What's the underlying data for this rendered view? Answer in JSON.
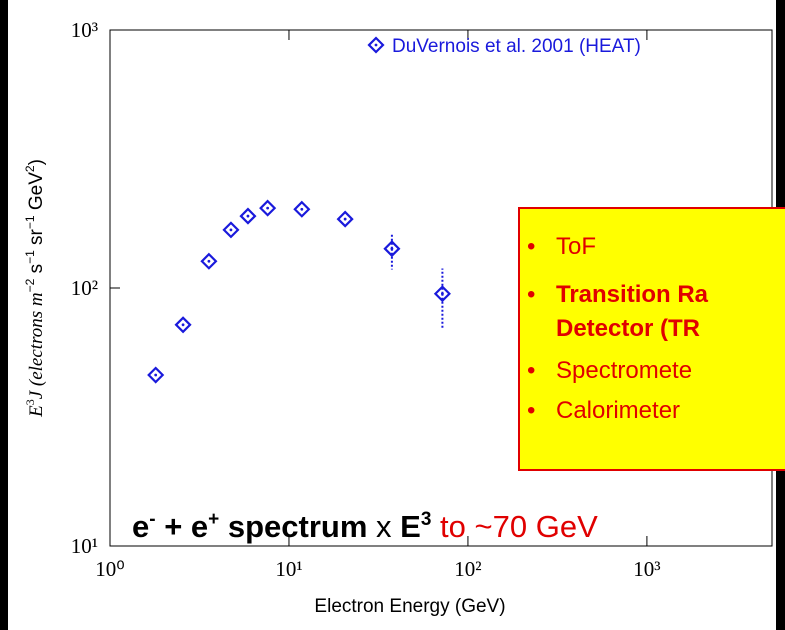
{
  "chart_data": {
    "type": "scatter",
    "xlabel": "Electron Energy (GeV)",
    "ylabel_parts": [
      "E",
      "3",
      "J (electrons m",
      "−2",
      " s",
      "−1",
      " sr",
      "−1",
      " GeV",
      "2",
      ")"
    ],
    "log_x": true,
    "log_y": true,
    "xlim": [
      1,
      5000
    ],
    "ylim": [
      10,
      1000
    ],
    "xticks": [
      {
        "value": 1,
        "label": "10⁰"
      },
      {
        "value": 10,
        "label": "10¹"
      },
      {
        "value": 100,
        "label": "10²"
      },
      {
        "value": 1000,
        "label": "10³"
      }
    ],
    "yticks": [
      {
        "value": 10,
        "label": "10¹"
      },
      {
        "value": 100,
        "label": "10²"
      },
      {
        "value": 1000,
        "label": "10³"
      }
    ],
    "series": [
      {
        "name": "DuVernois et al. 2001 (HEAT)",
        "color": "#1a1adc",
        "x": [
          1.8,
          2.56,
          3.57,
          4.74,
          5.9,
          7.6,
          11.8,
          20.6,
          37.6,
          72
        ],
        "values": [
          46,
          72,
          127,
          168,
          190,
          204,
          202,
          185,
          142,
          95
        ],
        "errors_plus": [
          null,
          null,
          null,
          null,
          null,
          null,
          null,
          null,
          20,
          24
        ],
        "errors_minus": [
          null,
          null,
          null,
          null,
          null,
          null,
          null,
          null,
          24,
          26
        ]
      }
    ],
    "legend": "upper right",
    "box_items": [
      "ToF",
      "Transition Ra",
      "Detector (TR",
      "Spectromete",
      "Calorimeter"
    ],
    "caption_parts": [
      "e",
      "-",
      " + e",
      "+",
      " spectrum",
      " x ",
      "E",
      "3",
      " to ~70 GeV"
    ]
  }
}
